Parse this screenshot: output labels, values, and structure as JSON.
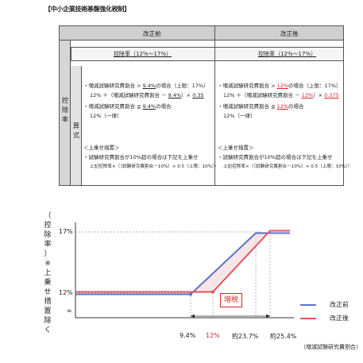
{
  "title": "【中小企業技術基盤強化税制】",
  "table": {
    "col_before": "改正前",
    "col_after": "改正後",
    "row_label_chars": [
      "控",
      "除",
      "率"
    ],
    "sub_label_chars": [
      "算",
      "式"
    ],
    "before": {
      "rate_header": "控除率（12%～17%）",
      "line1a": "・増減試験研究費割合 > ",
      "line1b": "9.4%",
      "line1c": "の場合（上限：17%）",
      "line2a": "12% ＋（増減試験研究費割合 － ",
      "line2b": "9.4%",
      "line2c": "）× ",
      "line2d": "0.35",
      "line3a": "・増減試験研究費割合 ≦ ",
      "line3b": "9.4%",
      "line3c": "の場合",
      "line4": "12%（一律）",
      "line5": "＜上乗せ措置＞",
      "line6": "・試験研究費割合が10%超の場合は下記を上乗せ",
      "line7": "上記控除率×（（試験研究費割合－10%）× 0.5（上限：10%））"
    },
    "after": {
      "rate_header": "控除率（12%～17%）",
      "line1a": "・増減試験研究費割合 > ",
      "line1b": "12%",
      "line1c": "の場合（上限：17%）",
      "line2a": "12% ＋（増減試験研究費割合 － ",
      "line2b": "12%",
      "line2c": "）× ",
      "line2d": "0.375",
      "line3a": "・増減試験研究費割合 ≦ ",
      "line3b": "12%",
      "line3c": "の場合",
      "line4": "12%（一律）",
      "line5": "＜上乗せ措置＞",
      "line6": "・試験研究費割合が10%超の場合は下記を上乗せ",
      "line7": "上記控除率×（（試験研究費割合－10%）× 0.5（上限：10%））"
    }
  },
  "chart": {
    "y_label_chars": [
      "（",
      "控",
      "除",
      "率",
      "）",
      "※",
      "上",
      "乗",
      "せ",
      "措",
      "置",
      "除",
      "く"
    ],
    "y_ticks": [
      "17%",
      "12%",
      "≈"
    ],
    "x_ticks": [
      "9.4%",
      "12%",
      "約23.7%",
      "約25.4%"
    ],
    "x_label": "（増減試験研究費割合）",
    "tag": "増税",
    "legend": [
      {
        "label": "改正前",
        "color": "#5b74c9"
      },
      {
        "label": "改正後",
        "color": "#e0565b"
      }
    ]
  },
  "chart_data": {
    "type": "line",
    "series": [
      {
        "name": "改正前",
        "x": [
          0,
          9.4,
          23.7,
          28
        ],
        "y": [
          12,
          12,
          17,
          17
        ]
      },
      {
        "name": "改正後",
        "x": [
          0,
          12,
          25.4,
          28
        ],
        "y": [
          12,
          12,
          17,
          17
        ]
      }
    ],
    "x_ticks": [
      "9.4%",
      "12%",
      "約23.7%",
      "約25.4%"
    ],
    "y_ticks": [
      "12%",
      "17%"
    ],
    "xlabel": "（増減試験研究費割合）",
    "ylabel": "（控除率）※上乗せ措置除く",
    "annotation": "増税"
  }
}
